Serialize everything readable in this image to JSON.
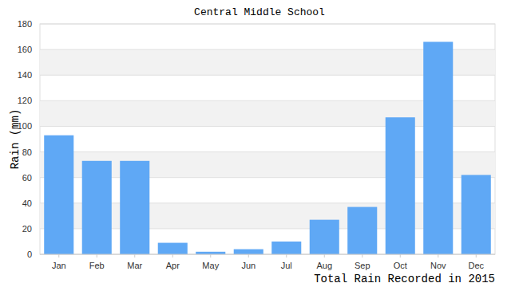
{
  "chart_data": {
    "type": "bar",
    "title": "Central Middle School",
    "x_label": "Total Rain Recorded in 2015",
    "y_label": "Rain (mm)",
    "categories": [
      "Jan",
      "Feb",
      "Mar",
      "Apr",
      "May",
      "Jun",
      "Jul",
      "Aug",
      "Sep",
      "Oct",
      "Nov",
      "Dec"
    ],
    "values": [
      93,
      73,
      73,
      9,
      2,
      4,
      10,
      27,
      37,
      107,
      166,
      62
    ],
    "color": "#5fa8f5",
    "ylim": [
      0,
      180
    ],
    "yticks": [
      0,
      20,
      40,
      60,
      80,
      100,
      120,
      140,
      160,
      180
    ],
    "grid": true
  }
}
